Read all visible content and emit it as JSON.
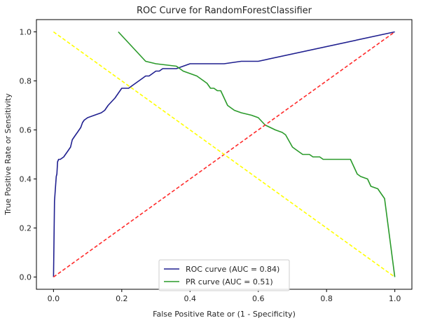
{
  "chart_data": {
    "type": "line",
    "title": "ROC Curve for RandomForestClassifier",
    "xlabel": "False Positive Rate or (1 - Specificity)",
    "ylabel": "True Positive Rate or Sensitivity",
    "xlim": [
      -0.05,
      1.05
    ],
    "ylim": [
      -0.05,
      1.05
    ],
    "xticks": [
      0.0,
      0.2,
      0.4,
      0.6,
      0.8,
      1.0
    ],
    "yticks": [
      0.0,
      0.2,
      0.4,
      0.6,
      0.8,
      1.0
    ],
    "grid": false,
    "legend_position": "lower-center",
    "series": [
      {
        "name": "ROC curve (AUC = 0.84)",
        "color": "#1f1f8f",
        "style": "solid",
        "x": [
          0.0,
          0.003,
          0.005,
          0.008,
          0.01,
          0.012,
          0.015,
          0.02,
          0.03,
          0.035,
          0.04,
          0.05,
          0.055,
          0.06,
          0.065,
          0.07,
          0.08,
          0.085,
          0.09,
          0.1,
          0.12,
          0.14,
          0.15,
          0.16,
          0.18,
          0.2,
          0.22,
          0.23,
          0.24,
          0.25,
          0.26,
          0.27,
          0.28,
          0.29,
          0.3,
          0.31,
          0.32,
          0.34,
          0.36,
          0.38,
          0.4,
          0.5,
          0.55,
          0.6,
          1.0
        ],
        "y": [
          0.0,
          0.31,
          0.35,
          0.41,
          0.42,
          0.47,
          0.48,
          0.48,
          0.49,
          0.5,
          0.51,
          0.53,
          0.56,
          0.57,
          0.58,
          0.59,
          0.61,
          0.63,
          0.64,
          0.65,
          0.66,
          0.67,
          0.68,
          0.7,
          0.73,
          0.77,
          0.77,
          0.78,
          0.79,
          0.8,
          0.81,
          0.82,
          0.82,
          0.83,
          0.84,
          0.84,
          0.85,
          0.85,
          0.85,
          0.86,
          0.87,
          0.87,
          0.88,
          0.88,
          1.0
        ]
      },
      {
        "name": "PR curve (AUC = 0.51)",
        "color": "#2a9a2a",
        "style": "solid",
        "x": [
          0.19,
          0.27,
          0.3,
          0.36,
          0.37,
          0.38,
          0.4,
          0.42,
          0.43,
          0.44,
          0.45,
          0.46,
          0.47,
          0.48,
          0.49,
          0.5,
          0.51,
          0.52,
          0.53,
          0.55,
          0.58,
          0.6,
          0.62,
          0.65,
          0.67,
          0.68,
          0.7,
          0.71,
          0.72,
          0.73,
          0.75,
          0.76,
          0.78,
          0.79,
          0.81,
          0.85,
          0.87,
          0.89,
          0.9,
          0.92,
          0.93,
          0.95,
          0.96,
          0.97,
          1.0
        ],
        "y": [
          1.0,
          0.88,
          0.87,
          0.86,
          0.85,
          0.84,
          0.83,
          0.82,
          0.81,
          0.8,
          0.79,
          0.77,
          0.77,
          0.76,
          0.76,
          0.73,
          0.7,
          0.69,
          0.68,
          0.67,
          0.66,
          0.65,
          0.62,
          0.6,
          0.59,
          0.58,
          0.53,
          0.52,
          0.51,
          0.5,
          0.5,
          0.49,
          0.49,
          0.48,
          0.48,
          0.48,
          0.48,
          0.42,
          0.41,
          0.4,
          0.37,
          0.36,
          0.34,
          0.32,
          0.0
        ]
      },
      {
        "name": "",
        "color": "#ff2a2a",
        "style": "dashed",
        "x": [
          0.0,
          1.0
        ],
        "y": [
          0.0,
          1.0
        ]
      },
      {
        "name": "",
        "color": "#ffff00",
        "style": "dashed",
        "x": [
          0.0,
          1.0
        ],
        "y": [
          1.0,
          0.0
        ]
      }
    ]
  }
}
